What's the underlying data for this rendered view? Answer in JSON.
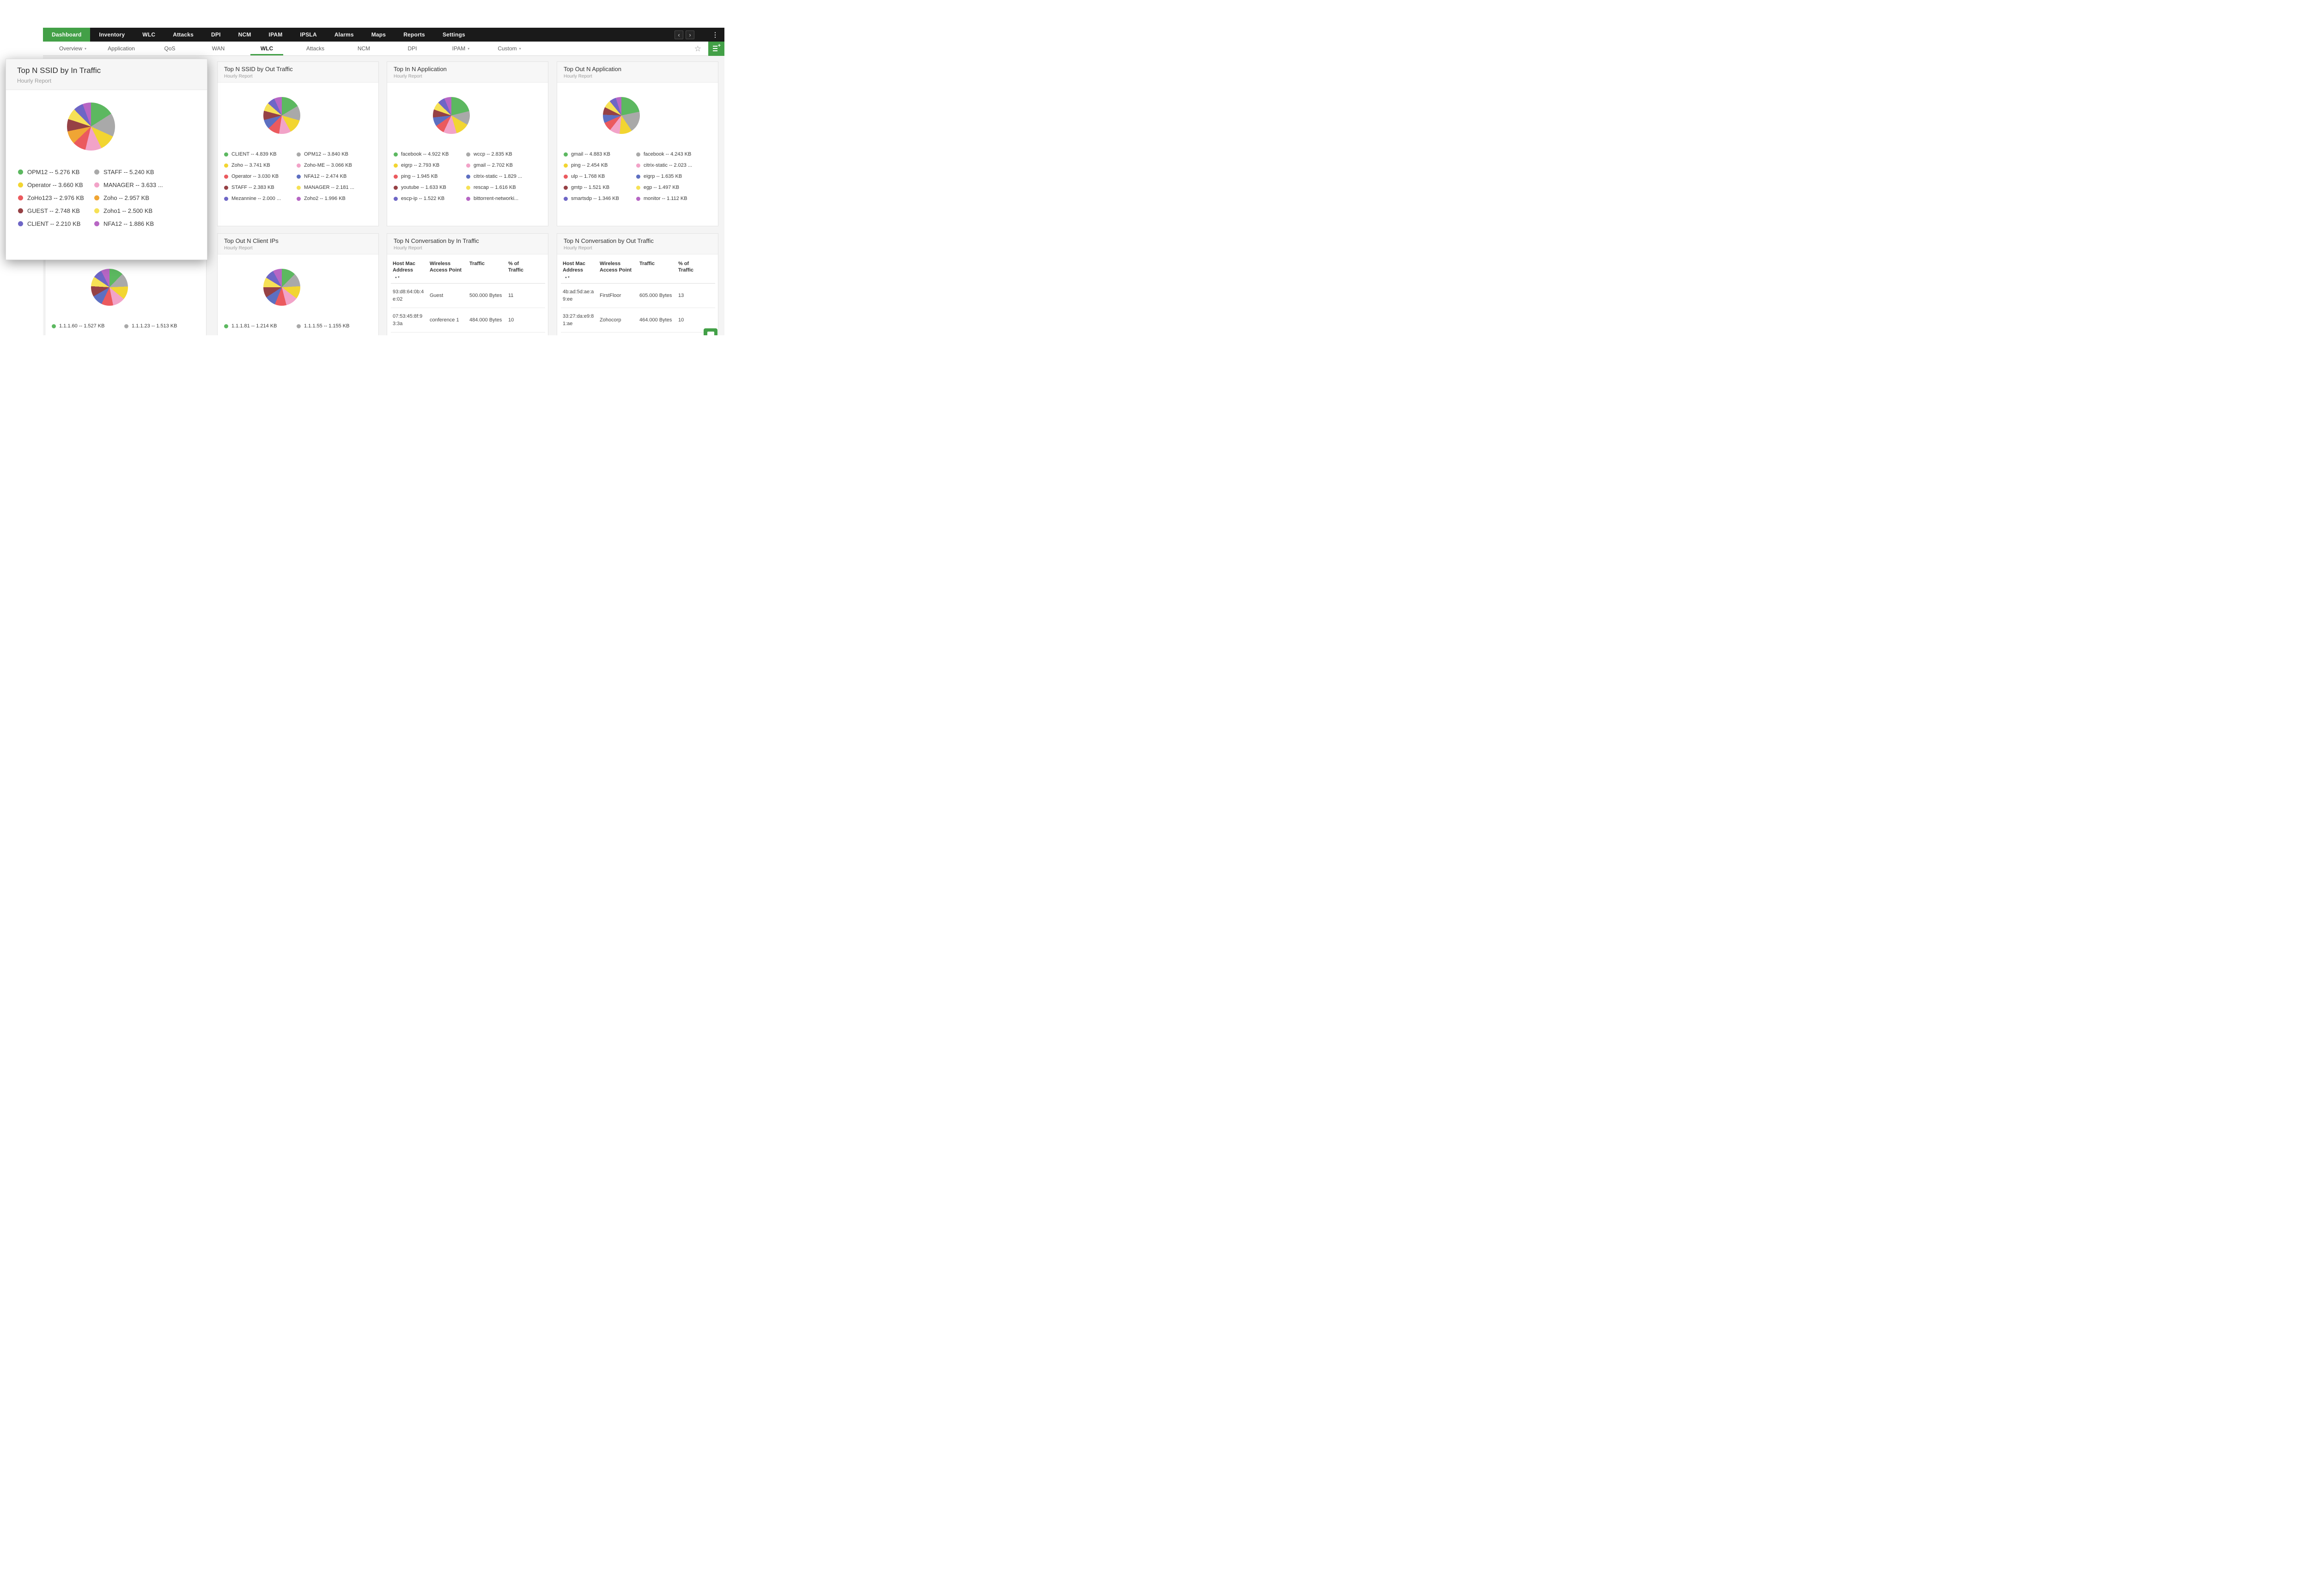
{
  "theme": {
    "accent": "#43a047",
    "topnav_bg": "#1a1a1a"
  },
  "icons": {
    "nav_prev": "chevron-left",
    "nav_next": "chevron-right",
    "overflow": "kebab-menu",
    "favorite": "star-outline",
    "add_widget": "add-dashboard",
    "chat": "chat-bubble",
    "sort": "sort-arrows"
  },
  "topnav": {
    "items": [
      {
        "label": "Dashboard",
        "active": true
      },
      {
        "label": "Inventory"
      },
      {
        "label": "WLC"
      },
      {
        "label": "Attacks"
      },
      {
        "label": "DPI"
      },
      {
        "label": "NCM"
      },
      {
        "label": "IPAM"
      },
      {
        "label": "IPSLA"
      },
      {
        "label": "Alarms"
      },
      {
        "label": "Maps"
      },
      {
        "label": "Reports"
      },
      {
        "label": "Settings"
      }
    ]
  },
  "subnav": {
    "items": [
      {
        "label": "Overview",
        "dropdown": true
      },
      {
        "label": "Application"
      },
      {
        "label": "QoS"
      },
      {
        "label": "WAN"
      },
      {
        "label": "WLC",
        "active": true
      },
      {
        "label": "Attacks"
      },
      {
        "label": "NCM"
      },
      {
        "label": "DPI"
      },
      {
        "label": "IPAM",
        "dropdown": true
      },
      {
        "label": "Custom",
        "dropdown": true
      }
    ]
  },
  "widgets": {
    "ssid_in": {
      "title": "Top N SSID by In Traffic",
      "subtitle": "Hourly Report",
      "chart_type": "pie",
      "legend": [
        {
          "label": "OPM12 -- 5.276 KB",
          "value": 5.276,
          "color": "#5cb860"
        },
        {
          "label": "STAFF -- 5.240 KB",
          "value": 5.24,
          "color": "#a9a9a9"
        },
        {
          "label": "Operator -- 3.660 KB",
          "value": 3.66,
          "color": "#f2d531"
        },
        {
          "label": "MANAGER -- 3.633 ...",
          "value": 3.633,
          "color": "#f2a3c8"
        },
        {
          "label": "ZoHo123 -- 2.976 KB",
          "value": 2.976,
          "color": "#eb5a5e"
        },
        {
          "label": "Zoho -- 2.957 KB",
          "value": 2.957,
          "color": "#f0a534"
        },
        {
          "label": "GUEST -- 2.748 KB",
          "value": 2.748,
          "color": "#964145"
        },
        {
          "label": "Zoho1 -- 2.500 KB",
          "value": 2.5,
          "color": "#f6e156"
        },
        {
          "label": "CLIENT -- 2.210 KB",
          "value": 2.21,
          "color": "#6e66c6"
        },
        {
          "label": "NFA12 -- 1.886 KB",
          "value": 1.886,
          "color": "#b766c4"
        }
      ]
    },
    "ssid_out": {
      "title": "Top N SSID by Out Traffic",
      "subtitle": "Hourly Report",
      "chart_type": "pie",
      "legend": [
        {
          "label": "CLIENT -- 4.839 KB",
          "value": 4.839,
          "color": "#5cb860"
        },
        {
          "label": "OPM12 -- 3.840 KB",
          "value": 3.84,
          "color": "#a9a9a9"
        },
        {
          "label": "Zoho -- 3.741 KB",
          "value": 3.741,
          "color": "#f2d531"
        },
        {
          "label": "Zoho-ME -- 3.066 KB",
          "value": 3.066,
          "color": "#f2a3c8"
        },
        {
          "label": "Operator -- 3.030 KB",
          "value": 3.03,
          "color": "#eb5a5e"
        },
        {
          "label": "NFA12 -- 2.474 KB",
          "value": 2.474,
          "color": "#5d6fc1"
        },
        {
          "label": "STAFF -- 2.383 KB",
          "value": 2.383,
          "color": "#964145"
        },
        {
          "label": "MANAGER -- 2.181 ...",
          "value": 2.181,
          "color": "#f6e156"
        },
        {
          "label": "Mezannine -- 2.000 ...",
          "value": 2.0,
          "color": "#6e66c6"
        },
        {
          "label": "Zoho2 -- 1.996 KB",
          "value": 1.996,
          "color": "#b766c4"
        }
      ]
    },
    "app_in": {
      "title": "Top In N Application",
      "subtitle": "Hourly Report",
      "chart_type": "pie",
      "legend": [
        {
          "label": "facebook -- 4.922 KB",
          "value": 4.922,
          "color": "#5cb860"
        },
        {
          "label": "wccp -- 2.835 KB",
          "value": 2.835,
          "color": "#a9a9a9"
        },
        {
          "label": "eigrp -- 2.793 KB",
          "value": 2.793,
          "color": "#f2d531"
        },
        {
          "label": "gmail -- 2.702 KB",
          "value": 2.702,
          "color": "#f2a3c8"
        },
        {
          "label": "ping -- 1.945 KB",
          "value": 1.945,
          "color": "#eb5a5e"
        },
        {
          "label": "citrix-static -- 1.829 ...",
          "value": 1.829,
          "color": "#5d6fc1"
        },
        {
          "label": "youtube -- 1.633 KB",
          "value": 1.633,
          "color": "#964145"
        },
        {
          "label": "rescap -- 1.616 KB",
          "value": 1.616,
          "color": "#f6e156"
        },
        {
          "label": "escp-ip -- 1.522 KB",
          "value": 1.522,
          "color": "#6e66c6"
        },
        {
          "label": "bittorrent-networki...",
          "value": 1.45,
          "color": "#b766c4"
        }
      ]
    },
    "app_out": {
      "title": "Top Out N Application",
      "subtitle": "Hourly Report",
      "chart_type": "pie",
      "legend": [
        {
          "label": "gmail -- 4.883 KB",
          "value": 4.883,
          "color": "#5cb860"
        },
        {
          "label": "facebook -- 4.243 KB",
          "value": 4.243,
          "color": "#a9a9a9"
        },
        {
          "label": "ping -- 2.454 KB",
          "value": 2.454,
          "color": "#f2d531"
        },
        {
          "label": "citrix-static -- 2.023 ...",
          "value": 2.023,
          "color": "#f2a3c8"
        },
        {
          "label": "ulp -- 1.768 KB",
          "value": 1.768,
          "color": "#eb5a5e"
        },
        {
          "label": "eigrp -- 1.635 KB",
          "value": 1.635,
          "color": "#5d6fc1"
        },
        {
          "label": "gmtp -- 1.521 KB",
          "value": 1.521,
          "color": "#964145"
        },
        {
          "label": "egp -- 1.497 KB",
          "value": 1.497,
          "color": "#f6e156"
        },
        {
          "label": "smartsdp -- 1.346 KB",
          "value": 1.346,
          "color": "#6e66c6"
        },
        {
          "label": "monitor -- 1.112 KB",
          "value": 1.112,
          "color": "#b766c4"
        }
      ]
    },
    "client_in": {
      "chart_type": "pie",
      "legend": [
        {
          "label": "1.1.1.60 -- 1.527 KB",
          "value": 1.527,
          "color": "#5cb860"
        },
        {
          "label": "1.1.1.23 -- 1.513 KB",
          "value": 1.513,
          "color": "#a9a9a9"
        }
      ],
      "pie_values": [
        1.527,
        1.513,
        1.44,
        1.36,
        1.28,
        1.21,
        1.14,
        1.07,
        1.0,
        0.94
      ],
      "pie_colors": [
        "#5cb860",
        "#a9a9a9",
        "#f2d531",
        "#f2a3c8",
        "#eb5a5e",
        "#5d6fc1",
        "#964145",
        "#f6e156",
        "#6e66c6",
        "#b766c4"
      ]
    },
    "client_out": {
      "title": "Top Out N Client IPs",
      "subtitle": "Hourly Report",
      "chart_type": "pie",
      "legend": [
        {
          "label": "1.1.1.81 -- 1.214 KB",
          "value": 1.214,
          "color": "#5cb860"
        },
        {
          "label": "1.1.1.55 -- 1.155 KB",
          "value": 1.155,
          "color": "#a9a9a9"
        }
      ],
      "pie_values": [
        1.214,
        1.155,
        1.1,
        1.05,
        1.0,
        0.95,
        0.9,
        0.86,
        0.82,
        0.78
      ],
      "pie_colors": [
        "#5cb860",
        "#a9a9a9",
        "#f2d531",
        "#f2a3c8",
        "#eb5a5e",
        "#5d6fc1",
        "#964145",
        "#f6e156",
        "#6e66c6",
        "#b766c4"
      ]
    },
    "conv_in": {
      "title": "Top N Conversation by In Traffic",
      "subtitle": "Hourly Report",
      "chart_type": "table",
      "sort_column": 0,
      "columns": [
        "Host Mac Address",
        "Wireless Access Point",
        "Traffic",
        "% of Traffic"
      ],
      "rows": [
        [
          "93:d8:64:0b:4e:02",
          "Guest",
          "500.000 Bytes",
          "11"
        ],
        [
          "07:53:45:8f:93:3a",
          "conference 1",
          "484.000 Bytes",
          "10"
        ]
      ]
    },
    "conv_out": {
      "title": "Top N Conversation by Out Traffic",
      "subtitle": "Hourly Report",
      "chart_type": "table",
      "sort_column": 0,
      "columns": [
        "Host Mac Address",
        "Wireless Access Point",
        "Traffic",
        "% of Traffic"
      ],
      "rows": [
        [
          "4b:ad:5d:ae:a9:ee",
          "FirstFloor",
          "605.000 Bytes",
          "13"
        ],
        [
          "33:27:da:e9:81:ae",
          "Zohocorp",
          "464.000 Bytes",
          "10"
        ]
      ]
    }
  }
}
